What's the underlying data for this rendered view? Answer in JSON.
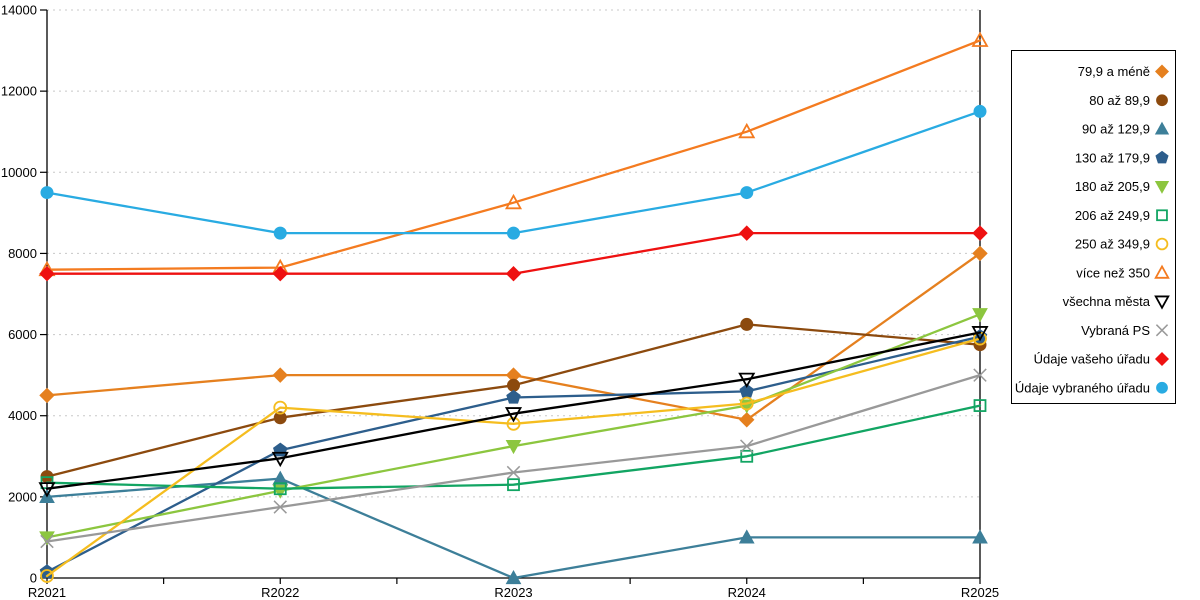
{
  "chart_data": {
    "type": "line",
    "title": "",
    "xlabel": "",
    "ylabel": "",
    "categories": [
      "R2021",
      "R2022",
      "R2023",
      "R2024",
      "R2025"
    ],
    "ylim": [
      0,
      14000
    ],
    "yticks": [
      0,
      2000,
      4000,
      6000,
      8000,
      10000,
      12000,
      14000
    ],
    "grid": "horizontal-dashed",
    "legend_position": "right",
    "series": [
      {
        "name": "79,9 a méně",
        "color": "#E5801F",
        "marker": "diamond",
        "filled": true,
        "values": [
          4500,
          5000,
          5000,
          3900,
          8000
        ]
      },
      {
        "name": "80 až 89,9",
        "color": "#8C4A0E",
        "marker": "circle",
        "filled": true,
        "values": [
          2500,
          3950,
          4750,
          6250,
          5750
        ]
      },
      {
        "name": "90 až 129,9",
        "color": "#3D7F99",
        "marker": "triangle-up",
        "filled": true,
        "values": [
          2000,
          2450,
          0,
          1000,
          1000
        ]
      },
      {
        "name": "130 až 179,9",
        "color": "#2D5E8C",
        "marker": "pentagon",
        "filled": true,
        "values": [
          150,
          3150,
          4450,
          4600,
          5950
        ]
      },
      {
        "name": "180 až 205,9",
        "color": "#8CC63F",
        "marker": "triangle-down",
        "filled": true,
        "values": [
          1000,
          2150,
          3250,
          4250,
          6500
        ]
      },
      {
        "name": "206 až 249,9",
        "color": "#12A563",
        "marker": "square",
        "filled": false,
        "values": [
          2350,
          2200,
          2300,
          3000,
          4250
        ]
      },
      {
        "name": "250 až 349,9",
        "color": "#F5BD1F",
        "marker": "circle",
        "filled": false,
        "values": [
          50,
          4200,
          3800,
          4300,
          5900
        ]
      },
      {
        "name": "více než 350",
        "color": "#F47B20",
        "marker": "triangle-up",
        "filled": false,
        "values": [
          7600,
          7650,
          9250,
          11000,
          13250
        ]
      },
      {
        "name": "všechna města",
        "color": "#000000",
        "marker": "triangle-down",
        "filled": false,
        "values": [
          2200,
          2950,
          4050,
          4900,
          6050
        ]
      },
      {
        "name": "Vybraná PS",
        "color": "#999999",
        "marker": "x",
        "filled": false,
        "values": [
          900,
          1750,
          2600,
          3250,
          5000
        ]
      },
      {
        "name": "Údaje vašeho úřadu",
        "color": "#EE1111",
        "marker": "diamond",
        "filled": true,
        "values": [
          7500,
          7500,
          7500,
          8500,
          8500
        ]
      },
      {
        "name": "Údaje vybraného úřadu",
        "color": "#29ABE2",
        "marker": "circle",
        "filled": true,
        "values": [
          9500,
          8500,
          8500,
          9500,
          11500
        ]
      }
    ],
    "colors": {
      "gridline": "#C8C8C8",
      "axis": "#000000",
      "legend_border": "#000000",
      "background": "#FFFFFF"
    }
  }
}
